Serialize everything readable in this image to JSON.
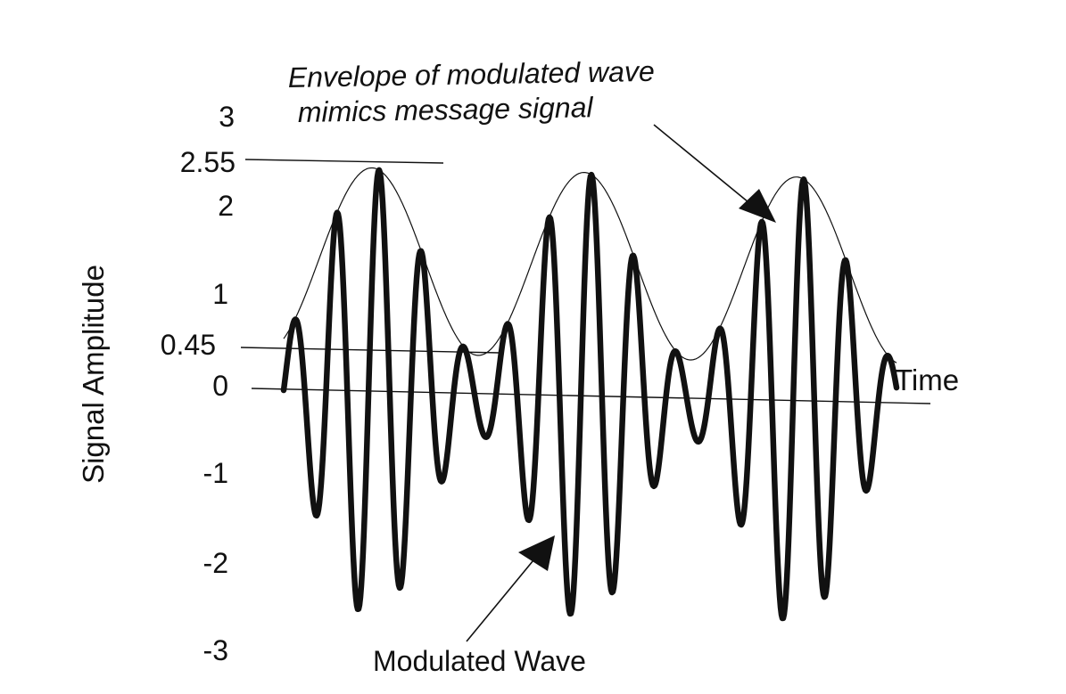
{
  "chart_data": {
    "type": "line",
    "title": "",
    "xlabel": "Time",
    "ylabel": "Signal Amplitude",
    "ylim": [
      -3,
      3
    ],
    "yticks": [
      "3",
      "2.55",
      "2",
      "1",
      "0.45",
      "0",
      "-1",
      "-2",
      "-3"
    ],
    "ytick_values": [
      3,
      2.55,
      2,
      1,
      0.45,
      0,
      -1,
      -2,
      -3
    ],
    "grid": false,
    "series": [
      {
        "name": "Modulated Wave",
        "description_values": {
          "carrier_peaks_per_cycle": 5,
          "max": 2.55,
          "min": -2.55
        }
      },
      {
        "name": "Envelope",
        "description_values": {
          "max": 2.55,
          "min": 0.45,
          "cycles": 2.6
        }
      }
    ],
    "reference_lines": [
      2.55,
      0.45,
      0
    ],
    "annotations": [
      {
        "text_line1": "Envelope of modulated wave",
        "text_line2": "mimics message signal"
      },
      {
        "text": "Modulated Wave"
      }
    ]
  }
}
